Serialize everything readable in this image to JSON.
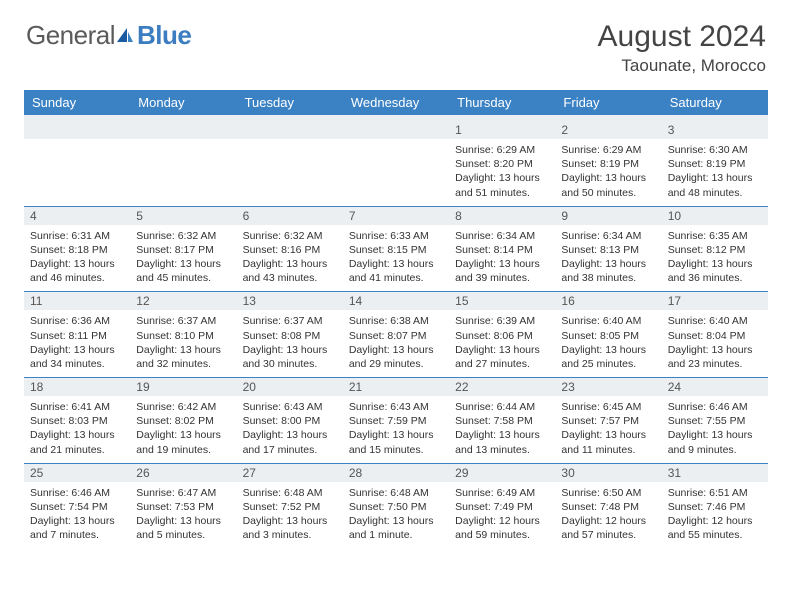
{
  "logo": {
    "text_left": "General",
    "text_right": "Blue"
  },
  "title": "August 2024",
  "location": "Taounate, Morocco",
  "colors": {
    "header_bg": "#3b82c4",
    "daynum_bg": "#eceff1",
    "text": "#333333",
    "logo_gray": "#5b5b5b",
    "logo_blue": "#3b7dc0"
  },
  "daynames": [
    "Sunday",
    "Monday",
    "Tuesday",
    "Wednesday",
    "Thursday",
    "Friday",
    "Saturday"
  ],
  "weeks": [
    [
      null,
      null,
      null,
      null,
      {
        "n": "1",
        "sr": "6:29 AM",
        "ss": "8:20 PM",
        "dl": "13 hours and 51 minutes."
      },
      {
        "n": "2",
        "sr": "6:29 AM",
        "ss": "8:19 PM",
        "dl": "13 hours and 50 minutes."
      },
      {
        "n": "3",
        "sr": "6:30 AM",
        "ss": "8:19 PM",
        "dl": "13 hours and 48 minutes."
      }
    ],
    [
      {
        "n": "4",
        "sr": "6:31 AM",
        "ss": "8:18 PM",
        "dl": "13 hours and 46 minutes."
      },
      {
        "n": "5",
        "sr": "6:32 AM",
        "ss": "8:17 PM",
        "dl": "13 hours and 45 minutes."
      },
      {
        "n": "6",
        "sr": "6:32 AM",
        "ss": "8:16 PM",
        "dl": "13 hours and 43 minutes."
      },
      {
        "n": "7",
        "sr": "6:33 AM",
        "ss": "8:15 PM",
        "dl": "13 hours and 41 minutes."
      },
      {
        "n": "8",
        "sr": "6:34 AM",
        "ss": "8:14 PM",
        "dl": "13 hours and 39 minutes."
      },
      {
        "n": "9",
        "sr": "6:34 AM",
        "ss": "8:13 PM",
        "dl": "13 hours and 38 minutes."
      },
      {
        "n": "10",
        "sr": "6:35 AM",
        "ss": "8:12 PM",
        "dl": "13 hours and 36 minutes."
      }
    ],
    [
      {
        "n": "11",
        "sr": "6:36 AM",
        "ss": "8:11 PM",
        "dl": "13 hours and 34 minutes."
      },
      {
        "n": "12",
        "sr": "6:37 AM",
        "ss": "8:10 PM",
        "dl": "13 hours and 32 minutes."
      },
      {
        "n": "13",
        "sr": "6:37 AM",
        "ss": "8:08 PM",
        "dl": "13 hours and 30 minutes."
      },
      {
        "n": "14",
        "sr": "6:38 AM",
        "ss": "8:07 PM",
        "dl": "13 hours and 29 minutes."
      },
      {
        "n": "15",
        "sr": "6:39 AM",
        "ss": "8:06 PM",
        "dl": "13 hours and 27 minutes."
      },
      {
        "n": "16",
        "sr": "6:40 AM",
        "ss": "8:05 PM",
        "dl": "13 hours and 25 minutes."
      },
      {
        "n": "17",
        "sr": "6:40 AM",
        "ss": "8:04 PM",
        "dl": "13 hours and 23 minutes."
      }
    ],
    [
      {
        "n": "18",
        "sr": "6:41 AM",
        "ss": "8:03 PM",
        "dl": "13 hours and 21 minutes."
      },
      {
        "n": "19",
        "sr": "6:42 AM",
        "ss": "8:02 PM",
        "dl": "13 hours and 19 minutes."
      },
      {
        "n": "20",
        "sr": "6:43 AM",
        "ss": "8:00 PM",
        "dl": "13 hours and 17 minutes."
      },
      {
        "n": "21",
        "sr": "6:43 AM",
        "ss": "7:59 PM",
        "dl": "13 hours and 15 minutes."
      },
      {
        "n": "22",
        "sr": "6:44 AM",
        "ss": "7:58 PM",
        "dl": "13 hours and 13 minutes."
      },
      {
        "n": "23",
        "sr": "6:45 AM",
        "ss": "7:57 PM",
        "dl": "13 hours and 11 minutes."
      },
      {
        "n": "24",
        "sr": "6:46 AM",
        "ss": "7:55 PM",
        "dl": "13 hours and 9 minutes."
      }
    ],
    [
      {
        "n": "25",
        "sr": "6:46 AM",
        "ss": "7:54 PM",
        "dl": "13 hours and 7 minutes."
      },
      {
        "n": "26",
        "sr": "6:47 AM",
        "ss": "7:53 PM",
        "dl": "13 hours and 5 minutes."
      },
      {
        "n": "27",
        "sr": "6:48 AM",
        "ss": "7:52 PM",
        "dl": "13 hours and 3 minutes."
      },
      {
        "n": "28",
        "sr": "6:48 AM",
        "ss": "7:50 PM",
        "dl": "13 hours and 1 minute."
      },
      {
        "n": "29",
        "sr": "6:49 AM",
        "ss": "7:49 PM",
        "dl": "12 hours and 59 minutes."
      },
      {
        "n": "30",
        "sr": "6:50 AM",
        "ss": "7:48 PM",
        "dl": "12 hours and 57 minutes."
      },
      {
        "n": "31",
        "sr": "6:51 AM",
        "ss": "7:46 PM",
        "dl": "12 hours and 55 minutes."
      }
    ]
  ],
  "labels": {
    "sunrise": "Sunrise:",
    "sunset": "Sunset:",
    "daylight": "Daylight:"
  }
}
